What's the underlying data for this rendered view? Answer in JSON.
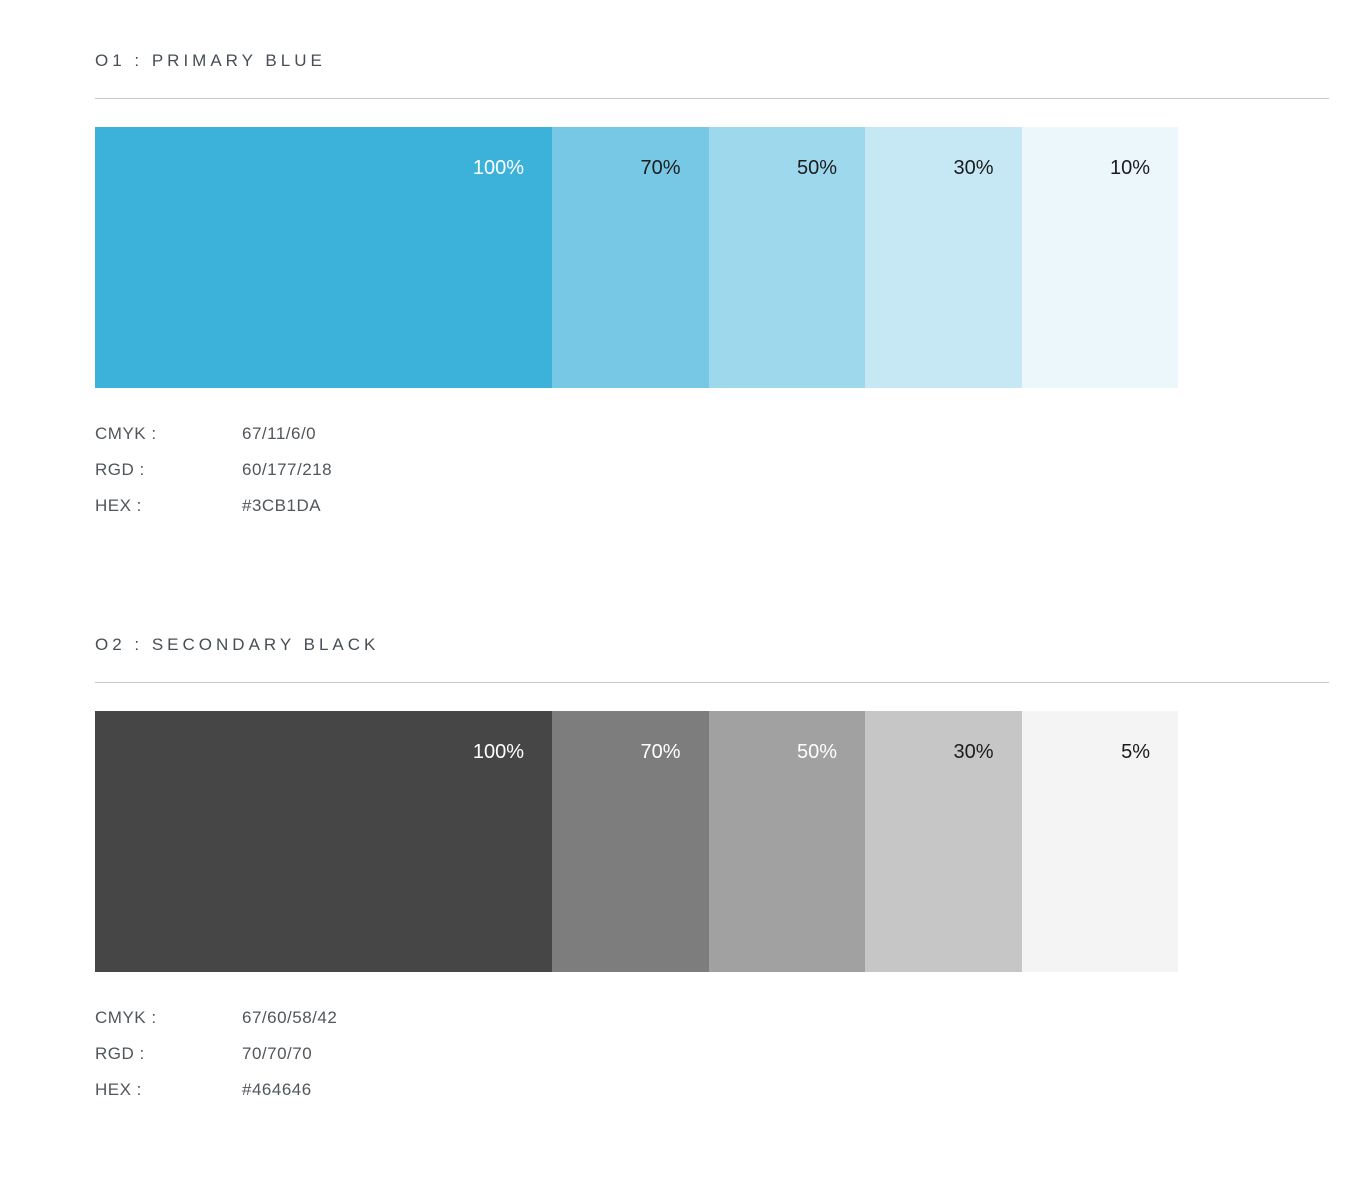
{
  "page": {
    "background": "#FFFFFF",
    "divider_color": "#C6C8C9",
    "heading_color": "#474E57",
    "spec_text_color": "#50565C"
  },
  "sections": [
    {
      "heading": "O1 : PRIMARY BLUE",
      "swatches": [
        {
          "label": "100%",
          "color": "#3CB1DA",
          "label_color": "#FFFFFF"
        },
        {
          "label": "70%",
          "color": "#77C8E5",
          "label_color": "#1C1C1E"
        },
        {
          "label": "50%",
          "color": "#9DD8EC",
          "label_color": "#1C1C1E"
        },
        {
          "label": "30%",
          "color": "#C5E8F4",
          "label_color": "#1C1C1E"
        },
        {
          "label": "10%",
          "color": "#EBF7FB",
          "label_color": "#1C1C1E"
        }
      ],
      "specs": [
        {
          "label": "CMYK :",
          "value": "67/11/6/0"
        },
        {
          "label": "RGD :",
          "value": "60/177/218"
        },
        {
          "label": "HEX :",
          "value": "#3CB1DA"
        }
      ]
    },
    {
      "heading": "O2 : SECONDARY BLACK",
      "swatches": [
        {
          "label": "100%",
          "color": "#464646",
          "label_color": "#FFFFFF"
        },
        {
          "label": "70%",
          "color": "#7D7D7D",
          "label_color": "#FFFFFF"
        },
        {
          "label": "50%",
          "color": "#A1A1A1",
          "label_color": "#FFFFFF"
        },
        {
          "label": "30%",
          "color": "#C6C6C6",
          "label_color": "#1C1C1E"
        },
        {
          "label": "5%",
          "color": "#F4F4F4",
          "label_color": "#1C1C1E"
        }
      ],
      "specs": [
        {
          "label": "CMYK :",
          "value": "67/60/58/42"
        },
        {
          "label": "RGD :",
          "value": "70/70/70"
        },
        {
          "label": "HEX :",
          "value": "#464646"
        }
      ]
    }
  ]
}
